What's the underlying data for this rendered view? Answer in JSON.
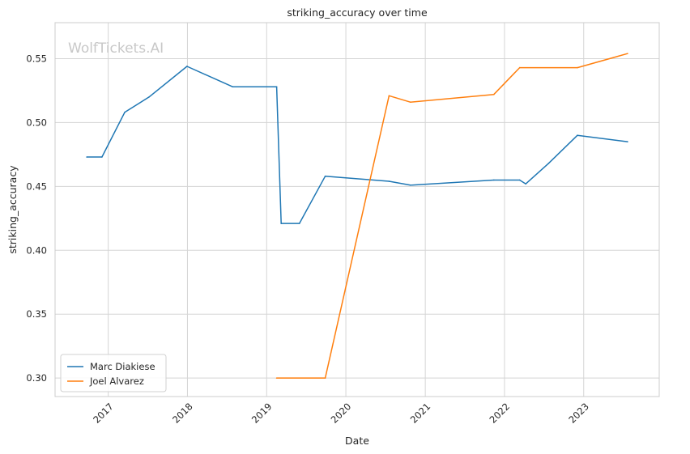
{
  "chart_data": {
    "type": "line",
    "title": "striking_accuracy over time",
    "xlabel": "Date",
    "ylabel": "striking_accuracy",
    "watermark": "WolfTickets.AI",
    "x_type": "date",
    "xlim": [
      "2016-05-01",
      "2023-12-15"
    ],
    "ylim": [
      0.2855,
      0.5782
    ],
    "x_ticks": [
      {
        "date": "2017-01-01",
        "label": "2017"
      },
      {
        "date": "2018-01-01",
        "label": "2018"
      },
      {
        "date": "2019-01-01",
        "label": "2019"
      },
      {
        "date": "2020-01-01",
        "label": "2020"
      },
      {
        "date": "2021-01-01",
        "label": "2021"
      },
      {
        "date": "2022-01-01",
        "label": "2022"
      },
      {
        "date": "2023-01-01",
        "label": "2023"
      }
    ],
    "y_ticks": [
      {
        "value": 0.3,
        "label": "0.30"
      },
      {
        "value": 0.35,
        "label": "0.35"
      },
      {
        "value": 0.4,
        "label": "0.40"
      },
      {
        "value": 0.45,
        "label": "0.45"
      },
      {
        "value": 0.5,
        "label": "0.50"
      },
      {
        "value": 0.55,
        "label": "0.55"
      }
    ],
    "grid": true,
    "legend_position": "lower-left",
    "series": [
      {
        "name": "Marc Diakiese",
        "color": "#1f77b4",
        "points": [
          {
            "x": "2016-09-24",
            "y": 0.473
          },
          {
            "x": "2016-12-03",
            "y": 0.473
          },
          {
            "x": "2017-03-18",
            "y": 0.508
          },
          {
            "x": "2017-07-08",
            "y": 0.52
          },
          {
            "x": "2017-12-30",
            "y": 0.544
          },
          {
            "x": "2018-07-28",
            "y": 0.528
          },
          {
            "x": "2019-02-16",
            "y": 0.528
          },
          {
            "x": "2019-03-09",
            "y": 0.421
          },
          {
            "x": "2019-06-01",
            "y": 0.421
          },
          {
            "x": "2019-09-28",
            "y": 0.458
          },
          {
            "x": "2020-07-18",
            "y": 0.454
          },
          {
            "x": "2020-10-24",
            "y": 0.451
          },
          {
            "x": "2021-11-13",
            "y": 0.455
          },
          {
            "x": "2022-03-12",
            "y": 0.455
          },
          {
            "x": "2022-04-09",
            "y": 0.452
          },
          {
            "x": "2022-07-23",
            "y": 0.468
          },
          {
            "x": "2022-12-03",
            "y": 0.49
          },
          {
            "x": "2023-07-22",
            "y": 0.485
          }
        ]
      },
      {
        "name": "Joel Alvarez",
        "color": "#ff7f0e",
        "points": [
          {
            "x": "2019-02-16",
            "y": 0.3
          },
          {
            "x": "2019-09-28",
            "y": 0.3
          },
          {
            "x": "2020-07-18",
            "y": 0.521
          },
          {
            "x": "2020-10-24",
            "y": 0.516
          },
          {
            "x": "2021-11-13",
            "y": 0.522
          },
          {
            "x": "2022-03-12",
            "y": 0.543
          },
          {
            "x": "2022-12-03",
            "y": 0.543
          },
          {
            "x": "2023-07-22",
            "y": 0.554
          }
        ]
      }
    ]
  }
}
